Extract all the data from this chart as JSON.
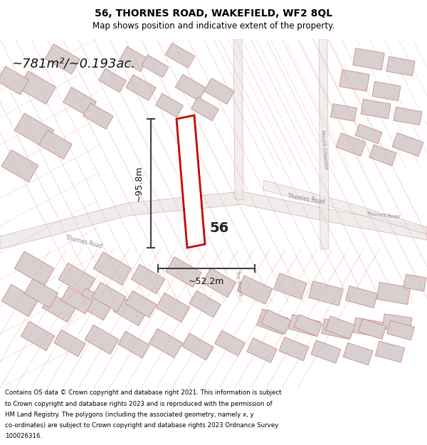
{
  "title_line1": "56, THORNES ROAD, WAKEFIELD, WF2 8QL",
  "title_line2": "Map shows position and indicative extent of the property.",
  "area_label": "~781m²/~0.193ac.",
  "dim_height": "~95.8m",
  "dim_width": "~52.2m",
  "property_number": "56",
  "footer_lines": [
    "Contains OS data © Crown copyright and database right 2021. This information is subject",
    "to Crown copyright and database rights 2023 and is reproduced with the permission of",
    "HM Land Registry. The polygons (including the associated geometry, namely x, y",
    "co-ordinates) are subject to Crown copyright and database rights 2023 Ordnance Survey",
    "100026316."
  ],
  "bg_color": "#f5f0f0",
  "map_bg": "#ffffff",
  "footer_bg": "#ffffff",
  "road_color": "#e8b0b0",
  "building_color": "#d8d0d0",
  "building_edge": "#cc8888",
  "property_outline_color": "#cc0000",
  "dim_line_color": "#404040",
  "road_label_color": "#888888",
  "title_color": "#000000",
  "footer_color": "#000000"
}
